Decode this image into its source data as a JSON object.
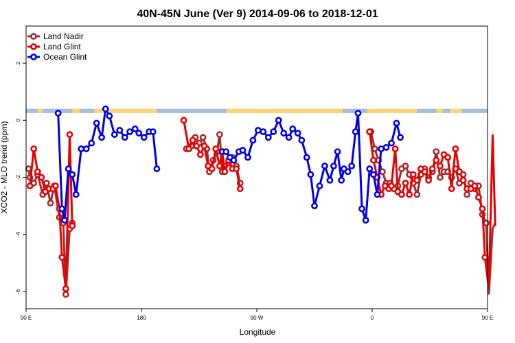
{
  "chart_data": {
    "type": "line",
    "title": "40N-45N June (Ver 9)   2014-09-06 to 2018-12-01",
    "xlabel": "Longitude",
    "ylabel": "XCO2 - MLO trend (ppm)",
    "xlim": [
      90,
      450
    ],
    "ylim": [
      -6.6,
      3.3
    ],
    "x_ticks": [
      {
        "value": 90,
        "label": "90 E"
      },
      {
        "value": 180,
        "label": "180"
      },
      {
        "value": 270,
        "label": "90 W"
      },
      {
        "value": 360,
        "label": "0"
      },
      {
        "value": 450,
        "label": "90 E"
      },
      {
        "value": 540,
        "label": "180"
      }
    ],
    "y_ticks": [
      {
        "value": 2,
        "label": "2"
      },
      {
        "value": 0,
        "label": "0"
      },
      {
        "value": -2,
        "label": "-2"
      },
      {
        "value": -4,
        "label": "-4"
      },
      {
        "value": -6,
        "label": "-6"
      }
    ],
    "legend_position": "top-left",
    "land_ocean_band": {
      "y_range": [
        0.25,
        0.4
      ],
      "land_color": "#f7d675",
      "ocean_color": "#a7bedb",
      "ocean_segments": [
        [
          90,
          99
        ],
        [
          103,
          126
        ],
        [
          132,
          143
        ],
        [
          192,
          246
        ],
        [
          337,
          356
        ],
        [
          395,
          410
        ],
        [
          415,
          421
        ],
        [
          430,
          440
        ],
        [
          440,
          476
        ],
        [
          481,
          508
        ],
        [
          523,
          540
        ]
      ]
    },
    "series": [
      {
        "name": "Land Nadir",
        "color": "#a52a2a",
        "points": [
          [
            92,
            -1.7
          ],
          [
            93,
            -2
          ],
          [
            96,
            -2.2
          ],
          [
            99,
            -1.9
          ],
          [
            103,
            -2.6
          ],
          [
            106,
            -2.2
          ],
          [
            109,
            -2.9
          ],
          [
            112,
            -2.3
          ],
          [
            116,
            -3.4
          ],
          [
            119,
            -3.6
          ],
          [
            121,
            -6.1
          ],
          [
            124,
            -3.8
          ],
          [
            126,
            -3.6
          ],
          [
            215,
            -1
          ],
          [
            219,
            -0.9
          ],
          [
            222,
            -0.6
          ],
          [
            225,
            -0.8
          ],
          [
            228,
            -0.6
          ],
          [
            231,
            -1
          ],
          [
            233,
            -1.8
          ],
          [
            236,
            -1.4
          ],
          [
            239,
            -1.1
          ],
          [
            241,
            -0.5
          ],
          [
            243,
            -1.8
          ],
          [
            245,
            -1.6
          ],
          [
            248,
            -1.5
          ],
          [
            251,
            -1.3
          ],
          [
            254,
            -1.6
          ],
          [
            257,
            -2.2
          ],
          [
            359,
            -0.4
          ],
          [
            362,
            -1
          ],
          [
            365,
            -1.4
          ],
          [
            368,
            -1.8
          ],
          [
            371,
            -2.2
          ],
          [
            374,
            -2.2
          ],
          [
            377,
            -2.4
          ],
          [
            380,
            -2.3
          ],
          [
            383,
            -1.7
          ],
          [
            386,
            -1.6
          ],
          [
            389,
            -1.9
          ],
          [
            392,
            -2.2
          ],
          [
            395,
            -2.6
          ],
          [
            398,
            -1.9
          ],
          [
            401,
            -1.7
          ],
          [
            404,
            -2
          ],
          [
            407,
            -1.8
          ],
          [
            410,
            -1.1
          ],
          [
            413,
            -2
          ],
          [
            416,
            -1.8
          ],
          [
            419,
            -1.8
          ],
          [
            422,
            -2
          ],
          [
            425,
            -1.7
          ],
          [
            428,
            -2.2
          ],
          [
            431,
            -1.9
          ],
          [
            434,
            -2.6
          ],
          [
            437,
            -2.2
          ],
          [
            440,
            -2.4
          ],
          [
            443,
            -2.3
          ],
          [
            446,
            -3.3
          ],
          [
            449,
            -3.6
          ],
          [
            451,
            -6.1
          ],
          [
            454,
            -3.8
          ],
          [
            456,
            -3.6
          ]
        ]
      },
      {
        "name": "Land Glint",
        "color": "#e80000",
        "points": [
          [
            93,
            -2.3
          ],
          [
            96,
            -1
          ],
          [
            99,
            -1.8
          ],
          [
            102,
            -2
          ],
          [
            105,
            -2.5
          ],
          [
            108,
            -2.4
          ],
          [
            111,
            -2.4
          ],
          [
            113,
            -2.3
          ],
          [
            116,
            -3.1
          ],
          [
            118,
            -4.8
          ],
          [
            121,
            -5.9
          ],
          [
            124,
            -0.5
          ],
          [
            126,
            -3.7
          ],
          [
            213,
            0
          ],
          [
            217,
            -1
          ],
          [
            220,
            -0.7
          ],
          [
            223,
            -0.9
          ],
          [
            226,
            -1.2
          ],
          [
            229,
            -0.9
          ],
          [
            232,
            -1.6
          ],
          [
            235,
            -1.7
          ],
          [
            238,
            -1
          ],
          [
            241,
            -1.6
          ],
          [
            243,
            -1.1
          ],
          [
            245,
            -1.8
          ],
          [
            248,
            -1.4
          ],
          [
            251,
            -1.7
          ],
          [
            254,
            -1.7
          ],
          [
            257,
            -2.4
          ],
          [
            358,
            -0.4
          ],
          [
            361,
            -1.4
          ],
          [
            364,
            -2
          ],
          [
            367,
            -2.6
          ],
          [
            370,
            -2.3
          ],
          [
            373,
            -2.4
          ],
          [
            375,
            -2.3
          ],
          [
            378,
            -1
          ],
          [
            380,
            -2.5
          ],
          [
            383,
            -2.6
          ],
          [
            386,
            -2.2
          ],
          [
            389,
            -2.6
          ],
          [
            392,
            -1.9
          ],
          [
            395,
            -2.1
          ],
          [
            398,
            -1.7
          ],
          [
            401,
            -1.8
          ],
          [
            404,
            -2.1
          ],
          [
            407,
            -1.7
          ],
          [
            410,
            -1.4
          ],
          [
            413,
            -1.6
          ],
          [
            416,
            -1.2
          ],
          [
            419,
            -1.3
          ],
          [
            422,
            -2.4
          ],
          [
            425,
            -1
          ],
          [
            428,
            -1.8
          ],
          [
            431,
            -2.1
          ],
          [
            434,
            -2.4
          ],
          [
            437,
            -2.4
          ],
          [
            440,
            -2.3
          ],
          [
            443,
            -2.7
          ],
          [
            446,
            -3.1
          ],
          [
            448,
            -4.8
          ],
          [
            451,
            -5.9
          ],
          [
            454,
            -0.5
          ],
          [
            456,
            -3.7
          ]
        ]
      },
      {
        "name": "Ocean Glint",
        "color": "#0000e8",
        "points": [
          [
            115,
            0.25
          ],
          [
            118,
            -3.1
          ],
          [
            120,
            -3.5
          ],
          [
            123,
            -1.7
          ],
          [
            126,
            -1.9
          ],
          [
            129,
            -2.6
          ],
          [
            133,
            -1
          ],
          [
            137,
            -1
          ],
          [
            141,
            -0.8
          ],
          [
            145,
            -0.1
          ],
          [
            149,
            -0.6
          ],
          [
            152,
            0.4
          ],
          [
            155,
            0.15
          ],
          [
            159,
            -0.5
          ],
          [
            163,
            -0.35
          ],
          [
            167,
            -0.6
          ],
          [
            171,
            -0.4
          ],
          [
            175,
            -0.3
          ],
          [
            178,
            -0.45
          ],
          [
            182,
            -0.6
          ],
          [
            186,
            -0.4
          ],
          [
            189,
            -0.4
          ],
          [
            192,
            -1.7
          ],
          [
            243,
            -1.1
          ],
          [
            246,
            -1.1
          ],
          [
            249,
            -1.3
          ],
          [
            252,
            -1.4
          ],
          [
            256,
            -1.1
          ],
          [
            259,
            -1.05
          ],
          [
            263,
            -1.3
          ],
          [
            267,
            -0.7
          ],
          [
            271,
            -0.35
          ],
          [
            275,
            -0.4
          ],
          [
            279,
            -0.6
          ],
          [
            283,
            -0.4
          ],
          [
            287,
            0
          ],
          [
            291,
            -0.45
          ],
          [
            295,
            -0.6
          ],
          [
            298,
            -0.3
          ],
          [
            302,
            -0.45
          ],
          [
            305,
            -0.7
          ],
          [
            309,
            -1.3
          ],
          [
            312,
            -1.9
          ],
          [
            315,
            -3
          ],
          [
            319,
            -2.3
          ],
          [
            323,
            -1.6
          ],
          [
            327,
            -2.1
          ],
          [
            330,
            -1.6
          ],
          [
            333,
            -1.1
          ],
          [
            336,
            -2.1
          ],
          [
            338,
            -1.7
          ],
          [
            341,
            -1.8
          ],
          [
            344,
            -1.6
          ],
          [
            347,
            -0.4
          ],
          [
            349,
            0.25
          ],
          [
            352,
            -3.1
          ],
          [
            355,
            -3.5
          ],
          [
            358,
            -1.7
          ],
          [
            361,
            -1.9
          ],
          [
            364,
            -2.6
          ],
          [
            367,
            -1
          ],
          [
            371,
            -0.95
          ],
          [
            375,
            -0.8
          ],
          [
            379,
            -0.1
          ],
          [
            382,
            -0.6
          ]
        ]
      }
    ]
  }
}
